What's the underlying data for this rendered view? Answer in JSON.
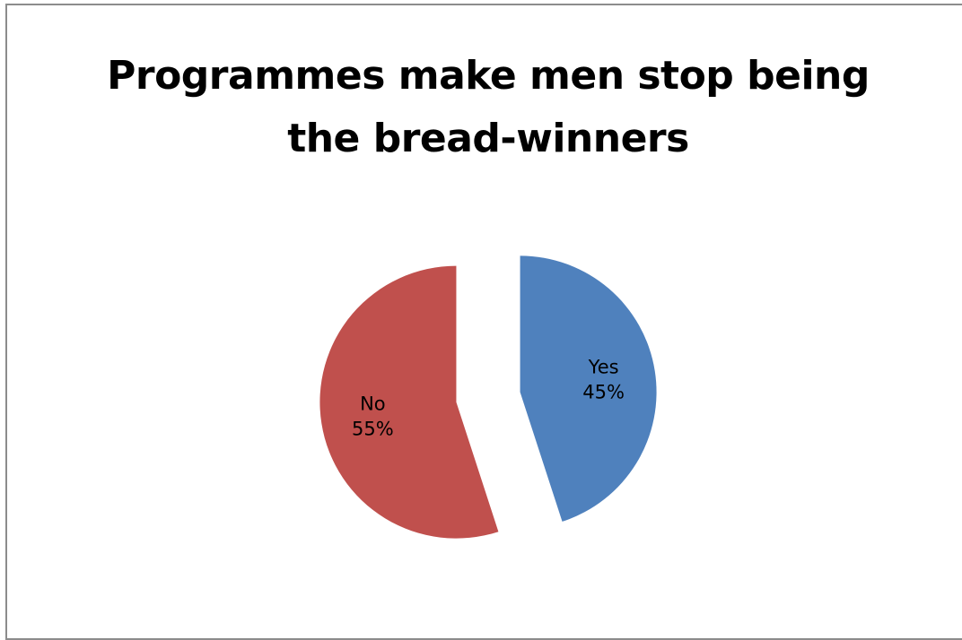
{
  "chart_data": {
    "type": "pie",
    "title": [
      "Programmes make men stop being",
      "the bread-winners"
    ],
    "slices": [
      {
        "label": "Yes",
        "value": 45,
        "value_label": "45%",
        "color": "#4f81bd",
        "exploded": true
      },
      {
        "label": "No",
        "value": 55,
        "value_label": "55%",
        "color": "#c0504d",
        "exploded": true
      }
    ],
    "start_angle": "12 o'clock, clockwise",
    "legend": "none",
    "data_labels": "inside"
  }
}
